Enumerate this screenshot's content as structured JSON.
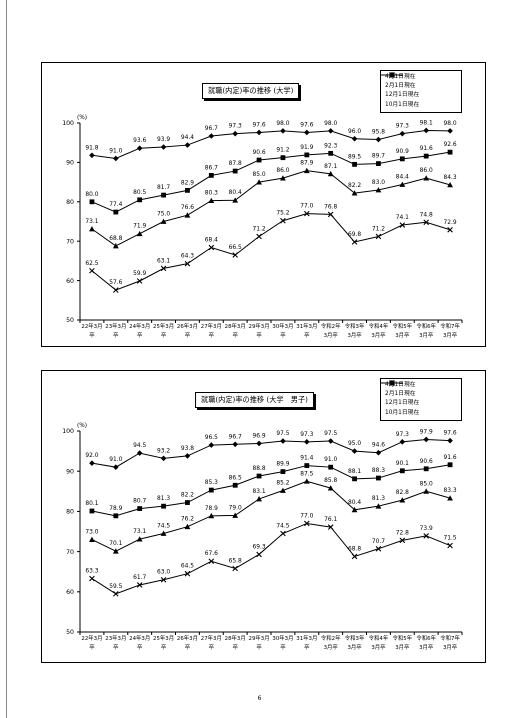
{
  "page": {
    "number": "6"
  },
  "legend": {
    "labels": [
      "4月1日現在",
      "2月1日現在",
      "12月1日現在",
      "10月1日現在"
    ],
    "markers": [
      "diamond",
      "square",
      "triangle",
      "x"
    ]
  },
  "chart_data": [
    {
      "type": "line",
      "title": "就職(内定)率の推移 (大学)",
      "ylabel": "(%)",
      "ylim": [
        50,
        100
      ],
      "yticks": [
        "50",
        "60",
        "70",
        "80",
        "90",
        "100"
      ],
      "grid": false,
      "legend_position": "top-right",
      "categories": [
        [
          "22年3月",
          "卒"
        ],
        [
          "23年3月",
          "卒"
        ],
        [
          "24年3月",
          "卒"
        ],
        [
          "25年3月",
          "卒"
        ],
        [
          "26年3月",
          "卒"
        ],
        [
          "27年3月",
          "卒"
        ],
        [
          "28年3月",
          "卒"
        ],
        [
          "29年3月",
          "卒"
        ],
        [
          "30年3月",
          "卒"
        ],
        [
          "31年3月",
          "卒"
        ],
        [
          "令和2年",
          "3月卒"
        ],
        [
          "令和3年",
          "3月卒"
        ],
        [
          "令和4年",
          "3月卒"
        ],
        [
          "令和5年",
          "3月卒"
        ],
        [
          "令和6年",
          "3月卒"
        ],
        [
          "令和7年",
          "3月卒"
        ]
      ],
      "series": [
        {
          "name": "4月1日現在",
          "marker": "diamond",
          "values": [
            91.8,
            91.0,
            93.6,
            93.9,
            94.4,
            96.7,
            97.3,
            97.6,
            98.0,
            97.6,
            98.0,
            96.0,
            95.8,
            97.3,
            98.1,
            98.0
          ],
          "labels": [
            "91.8",
            "91.0",
            "93.6",
            "93.9",
            "94.4",
            "96.7",
            "97.3",
            "97.6",
            "98.0",
            "97.6",
            "98.0",
            "96.0",
            "95.8",
            "97.3",
            "98.1",
            "98.0"
          ]
        },
        {
          "name": "2月1日現在",
          "marker": "square",
          "values": [
            80.0,
            77.4,
            80.5,
            81.7,
            82.9,
            86.7,
            87.8,
            90.6,
            91.2,
            91.9,
            92.3,
            89.5,
            89.7,
            90.9,
            91.6,
            92.6
          ],
          "labels": [
            "80.0",
            "77.4",
            "80.5",
            "81.7",
            "82.9",
            "86.7",
            "87.8",
            "90.6",
            "91.2",
            "91.9",
            "92.3",
            "89.5",
            "89.7",
            "90.9",
            "91.6",
            "92.6"
          ]
        },
        {
          "name": "12月1日現在",
          "marker": "triangle",
          "values": [
            73.1,
            68.8,
            71.9,
            75.0,
            76.6,
            80.3,
            80.4,
            85.0,
            86.0,
            87.9,
            87.1,
            82.2,
            83.0,
            84.4,
            86.0,
            84.3
          ],
          "labels": [
            "73.1",
            "68.8",
            "71.9",
            "75.0",
            "76.6",
            "80.3",
            "80.4",
            "85.0",
            "86.0",
            "87.9",
            "87.1",
            "82.2",
            "83.0",
            "84.4",
            "86.0",
            "84.3"
          ]
        },
        {
          "name": "10月1日現在",
          "marker": "x",
          "values": [
            62.5,
            57.6,
            59.9,
            63.1,
            64.3,
            68.4,
            66.5,
            71.2,
            75.2,
            77.0,
            76.8,
            69.8,
            71.2,
            74.1,
            74.8,
            72.9
          ],
          "labels": [
            "62.5",
            "57.6",
            "59.9",
            "63.1",
            "64.3",
            "68.4",
            "66.5",
            "71.2",
            "75.2",
            "77.0",
            "76.8",
            "69.8",
            "71.2",
            "74.1",
            "74.8",
            "72.9"
          ]
        }
      ]
    },
    {
      "type": "line",
      "title": "就職(内定)率の推移 (大学　男子)",
      "ylabel": "(%)",
      "ylim": [
        50,
        100
      ],
      "yticks": [
        "50",
        "60",
        "70",
        "80",
        "90",
        "100"
      ],
      "grid": false,
      "legend_position": "top-right",
      "categories": [
        [
          "22年3月",
          "卒"
        ],
        [
          "23年3月",
          "卒"
        ],
        [
          "24年3月",
          "卒"
        ],
        [
          "25年3月",
          "卒"
        ],
        [
          "26年3月",
          "卒"
        ],
        [
          "27年3月",
          "卒"
        ],
        [
          "28年3月",
          "卒"
        ],
        [
          "29年3月",
          "卒"
        ],
        [
          "30年3月",
          "卒"
        ],
        [
          "31年3月",
          "卒"
        ],
        [
          "令和2年",
          "3月卒"
        ],
        [
          "令和3年",
          "3月卒"
        ],
        [
          "令和4年",
          "3月卒"
        ],
        [
          "令和5年",
          "3月卒"
        ],
        [
          "令和6年",
          "3月卒"
        ],
        [
          "令和7年",
          "3月卒"
        ]
      ],
      "series": [
        {
          "name": "4月1日現在",
          "marker": "diamond",
          "values": [
            92.0,
            91.0,
            94.5,
            93.2,
            93.8,
            96.5,
            96.7,
            96.9,
            97.5,
            97.3,
            97.5,
            95.0,
            94.6,
            97.3,
            97.9,
            97.6
          ],
          "labels": [
            "92.0",
            "91.0",
            "94.5",
            "93.2",
            "93.8",
            "96.5",
            "96.7",
            "96.9",
            "97.5",
            "97.3",
            "97.5",
            "95.0",
            "94.6",
            "97.3",
            "97.9",
            "97.6"
          ]
        },
        {
          "name": "2月1日現在",
          "marker": "square",
          "values": [
            80.1,
            78.9,
            80.7,
            81.3,
            82.2,
            85.3,
            86.5,
            88.8,
            89.9,
            91.4,
            91.0,
            88.1,
            88.3,
            90.1,
            90.6,
            91.6
          ],
          "labels": [
            "80.1",
            "78.9",
            "80.7",
            "81.3",
            "82.2",
            "85.3",
            "86.5",
            "88.8",
            "89.9",
            "91.4",
            "91.0",
            "88.1",
            "88.3",
            "90.1",
            "90.6",
            "91.6"
          ]
        },
        {
          "name": "12月1日現在",
          "marker": "triangle",
          "values": [
            73.0,
            70.1,
            73.1,
            74.5,
            76.2,
            78.9,
            79.0,
            83.1,
            85.2,
            87.5,
            85.8,
            80.4,
            81.3,
            82.8,
            85.0,
            83.3
          ],
          "labels": [
            "73.0",
            "70.1",
            "73.1",
            "74.5",
            "76.2",
            "78.9",
            "79.0",
            "83.1",
            "85.2",
            "87.5",
            "85.8",
            "80.4",
            "81.3",
            "82.8",
            "85.0",
            "83.3"
          ]
        },
        {
          "name": "10月1日現在",
          "marker": "x",
          "values": [
            63.3,
            59.5,
            61.7,
            63.0,
            64.5,
            67.6,
            65.8,
            69.3,
            74.5,
            77.0,
            76.1,
            68.8,
            70.7,
            72.8,
            73.9,
            71.5
          ],
          "labels": [
            "63.3",
            "59.5",
            "61.7",
            "63.0",
            "64.5",
            "67.6",
            "65.8",
            "69.3",
            "74.5",
            "77.0",
            "76.1",
            "68.8",
            "70.7",
            "72.8",
            "73.9",
            "71.5"
          ]
        }
      ]
    }
  ]
}
